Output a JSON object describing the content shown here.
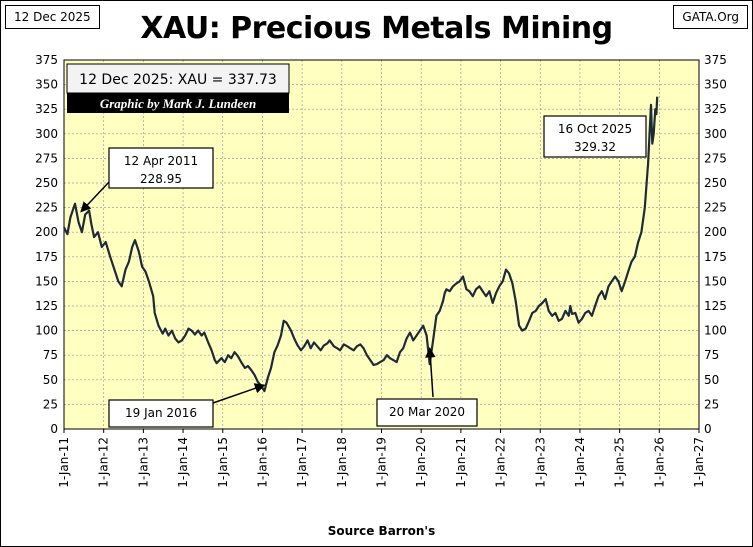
{
  "header": {
    "date_label": "12 Dec 2025",
    "site_label": "GATA.Org",
    "title": "XAU: Precious Metals Mining"
  },
  "chart_data": {
    "type": "line",
    "title": "XAU: Precious Metals Mining",
    "xlabel": "Source Barron's",
    "ylabel": "",
    "x_range": [
      "2011-01-01",
      "2027-01-01"
    ],
    "ylim": [
      0,
      375
    ],
    "y_ticks": [
      0,
      25,
      50,
      75,
      100,
      125,
      150,
      175,
      200,
      225,
      250,
      275,
      300,
      325,
      350,
      375
    ],
    "x_tick_labels": [
      "1-Jan-11",
      "1-Jan-12",
      "1-Jan-13",
      "1-Jan-14",
      "1-Jan-15",
      "1-Jan-16",
      "1-Jan-17",
      "1-Jan-18",
      "1-Jan-19",
      "1-Jan-20",
      "1-Jan-21",
      "1-Jan-22",
      "1-Jan-23",
      "1-Jan-24",
      "1-Jan-25",
      "1-Jan-26",
      "1-Jan-27"
    ],
    "grid": true,
    "background_color": "#ffffc0",
    "line_color": "#1c2a3a",
    "info_box": {
      "reading": "12 Dec 2025: XAU = 337.73",
      "credit": "Graphic by Mark J. Lundeen"
    },
    "annotations": [
      {
        "date": "2011-04-12",
        "value": 228.95,
        "label_lines": [
          "12 Apr 2011",
          "228.95"
        ]
      },
      {
        "date": "2016-01-19",
        "value": 38.5,
        "label_lines": [
          "19 Jan 2016"
        ]
      },
      {
        "date": "2020-03-20",
        "value": 66,
        "label_lines": [
          "20 Mar 2020"
        ]
      },
      {
        "date": "2025-10-16",
        "value": 329.32,
        "label_lines": [
          "16 Oct 2025",
          "329.32"
        ]
      }
    ],
    "series": [
      {
        "x": [
          "2011-01-01",
          "2011-02-01",
          "2011-03-01",
          "2011-04-12",
          "2011-05-15",
          "2011-06-15",
          "2011-07-15",
          "2011-08-20",
          "2011-09-10",
          "2011-10-05",
          "2011-11-10",
          "2011-12-15",
          "2012-01-20",
          "2012-03-01",
          "2012-04-15",
          "2012-05-15",
          "2012-06-15",
          "2012-07-20",
          "2012-08-20",
          "2012-09-20",
          "2012-10-15",
          "2012-11-20",
          "2012-12-20",
          "2013-01-20",
          "2013-02-20",
          "2013-04-01",
          "2013-04-15",
          "2013-05-20",
          "2013-06-27",
          "2013-07-20",
          "2013-08-20",
          "2013-09-20",
          "2013-10-20",
          "2013-11-20",
          "2013-12-20",
          "2014-01-20",
          "2014-02-20",
          "2014-03-20",
          "2014-04-20",
          "2014-05-20",
          "2014-06-20",
          "2014-07-15",
          "2014-08-20",
          "2014-09-20",
          "2014-10-20",
          "2014-11-05",
          "2014-12-20",
          "2015-01-20",
          "2015-02-20",
          "2015-03-20",
          "2015-04-20",
          "2015-05-20",
          "2015-06-20",
          "2015-07-25",
          "2015-08-20",
          "2015-09-20",
          "2015-10-20",
          "2015-11-20",
          "2015-12-20",
          "2016-01-19",
          "2016-02-20",
          "2016-03-20",
          "2016-04-20",
          "2016-05-20",
          "2016-06-20",
          "2016-07-15",
          "2016-08-10",
          "2016-09-20",
          "2016-10-20",
          "2016-11-20",
          "2016-12-20",
          "2017-01-20",
          "2017-02-20",
          "2017-03-20",
          "2017-04-20",
          "2017-05-20",
          "2017-06-20",
          "2017-07-20",
          "2017-08-20",
          "2017-09-10",
          "2017-10-20",
          "2017-11-20",
          "2017-12-15",
          "2018-01-20",
          "2018-02-20",
          "2018-03-20",
          "2018-04-20",
          "2018-05-20",
          "2018-06-20",
          "2018-07-20",
          "2018-08-20",
          "2018-09-20",
          "2018-10-20",
          "2018-11-20",
          "2018-12-20",
          "2019-01-20",
          "2019-02-20",
          "2019-03-20",
          "2019-04-20",
          "2019-05-20",
          "2019-06-20",
          "2019-07-20",
          "2019-08-20",
          "2019-09-20",
          "2019-10-20",
          "2019-11-20",
          "2019-12-20",
          "2020-01-20",
          "2020-02-20",
          "2020-03-20",
          "2020-04-20",
          "2020-05-20",
          "2020-06-20",
          "2020-07-20",
          "2020-08-05",
          "2020-08-20",
          "2020-09-20",
          "2020-10-20",
          "2020-11-20",
          "2020-12-20",
          "2021-01-20",
          "2021-02-20",
          "2021-03-20",
          "2021-04-20",
          "2021-05-20",
          "2021-06-20",
          "2021-07-20",
          "2021-08-20",
          "2021-09-20",
          "2021-10-20",
          "2021-11-20",
          "2021-12-20",
          "2022-01-20",
          "2022-02-20",
          "2022-03-20",
          "2022-04-20",
          "2022-05-20",
          "2022-06-20",
          "2022-07-20",
          "2022-08-20",
          "2022-09-20",
          "2022-10-20",
          "2022-11-20",
          "2022-12-20",
          "2023-01-20",
          "2023-02-20",
          "2023-03-20",
          "2023-04-20",
          "2023-05-20",
          "2023-06-20",
          "2023-07-20",
          "2023-08-20",
          "2023-09-20",
          "2023-10-05",
          "2023-10-20",
          "2023-11-20",
          "2023-12-20",
          "2024-01-20",
          "2024-02-20",
          "2024-03-20",
          "2024-04-20",
          "2024-05-20",
          "2024-06-20",
          "2024-07-20",
          "2024-08-20",
          "2024-09-20",
          "2024-10-20",
          "2024-11-20",
          "2024-12-20",
          "2025-01-20",
          "2025-02-20",
          "2025-03-20",
          "2025-04-20",
          "2025-05-20",
          "2025-06-20",
          "2025-07-20",
          "2025-08-20",
          "2025-09-20",
          "2025-10-16",
          "2025-10-28",
          "2025-11-10",
          "2025-11-25",
          "2025-12-05",
          "2025-12-12"
        ],
        "y": [
          205,
          198,
          215,
          228.95,
          210,
          200,
          218,
          222,
          208,
          195,
          200,
          185,
          190,
          175,
          160,
          150,
          145,
          162,
          170,
          185,
          192,
          180,
          165,
          160,
          150,
          135,
          118,
          105,
          97,
          102,
          95,
          100,
          92,
          88,
          90,
          95,
          102,
          100,
          96,
          100,
          95,
          98,
          88,
          80,
          70,
          67,
          72,
          68,
          75,
          72,
          78,
          74,
          68,
          62,
          64,
          60,
          55,
          48,
          44,
          38.5,
          52,
          62,
          78,
          85,
          95,
          110,
          108,
          100,
          92,
          85,
          80,
          84,
          90,
          82,
          88,
          84,
          80,
          85,
          87,
          90,
          84,
          82,
          80,
          86,
          84,
          82,
          80,
          84,
          86,
          82,
          75,
          70,
          65,
          66,
          68,
          70,
          75,
          72,
          70,
          68,
          78,
          82,
          92,
          98,
          90,
          95,
          100,
          105,
          95,
          66,
          90,
          115,
          120,
          130,
          138,
          142,
          140,
          145,
          148,
          150,
          155,
          142,
          140,
          135,
          142,
          145,
          140,
          135,
          140,
          128,
          138,
          145,
          150,
          162,
          158,
          148,
          130,
          105,
          100,
          102,
          110,
          118,
          120,
          125,
          128,
          132,
          120,
          115,
          118,
          110,
          112,
          120,
          115,
          125,
          117,
          118,
          108,
          112,
          118,
          120,
          115,
          125,
          135,
          140,
          132,
          145,
          150,
          155,
          150,
          140,
          150,
          160,
          170,
          175,
          190,
          200,
          225,
          270,
          329.32,
          290,
          300,
          325,
          320,
          337.73
        ]
      }
    ]
  }
}
